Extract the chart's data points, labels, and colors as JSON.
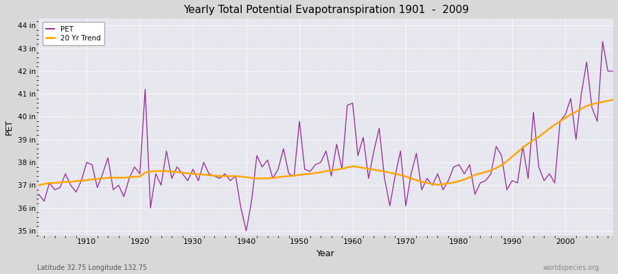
{
  "title": "Yearly Total Potential Evapotranspiration 1901  -  2009",
  "xlabel": "Year",
  "ylabel": "PET",
  "subtitle_left": "Latitude 32.75 Longitude 132.75",
  "subtitle_right": "worldspecies.org",
  "ylim": [
    34.8,
    44.3
  ],
  "yticks": [
    35,
    36,
    37,
    38,
    39,
    40,
    41,
    42,
    43,
    44
  ],
  "ytick_labels": [
    "35 in",
    "36 in",
    "37 in",
    "38 in",
    "39 in",
    "40 in",
    "41 in",
    "42 in",
    "43 in",
    "44 in"
  ],
  "pet_color": "#993399",
  "trend_color": "#FFA500",
  "fig_bg_color": "#E0E0E0",
  "plot_bg_color": "#E8E8F0",
  "years": [
    1901,
    1902,
    1903,
    1904,
    1905,
    1906,
    1907,
    1908,
    1909,
    1910,
    1911,
    1912,
    1913,
    1914,
    1915,
    1916,
    1917,
    1918,
    1919,
    1920,
    1921,
    1922,
    1923,
    1924,
    1925,
    1926,
    1927,
    1928,
    1929,
    1930,
    1931,
    1932,
    1933,
    1934,
    1935,
    1936,
    1937,
    1938,
    1939,
    1940,
    1941,
    1942,
    1943,
    1944,
    1945,
    1946,
    1947,
    1948,
    1949,
    1950,
    1951,
    1952,
    1953,
    1954,
    1955,
    1956,
    1957,
    1958,
    1959,
    1960,
    1961,
    1962,
    1963,
    1964,
    1965,
    1966,
    1967,
    1968,
    1969,
    1970,
    1971,
    1972,
    1973,
    1974,
    1975,
    1976,
    1977,
    1978,
    1979,
    1980,
    1981,
    1982,
    1983,
    1984,
    1985,
    1986,
    1987,
    1988,
    1989,
    1990,
    1991,
    1992,
    1993,
    1994,
    1995,
    1996,
    1997,
    1998,
    1999,
    2000,
    2001,
    2002,
    2003,
    2004,
    2005,
    2006,
    2007,
    2008,
    2009
  ],
  "pet_values": [
    36.6,
    36.3,
    37.1,
    36.8,
    36.9,
    37.5,
    37.0,
    36.7,
    37.2,
    38.0,
    37.9,
    36.9,
    37.5,
    38.2,
    36.8,
    37.0,
    36.5,
    37.3,
    37.8,
    37.5,
    41.2,
    36.0,
    37.5,
    37.0,
    38.5,
    37.3,
    37.8,
    37.5,
    37.2,
    37.7,
    37.2,
    38.0,
    37.5,
    37.4,
    37.3,
    37.5,
    37.2,
    37.4,
    36.0,
    35.0,
    36.3,
    38.3,
    37.8,
    38.1,
    37.3,
    37.7,
    38.6,
    37.5,
    37.4,
    39.8,
    37.7,
    37.6,
    37.9,
    38.0,
    38.5,
    37.4,
    38.8,
    37.7,
    40.5,
    40.6,
    38.3,
    39.1,
    37.3,
    38.5,
    39.5,
    37.3,
    36.1,
    37.4,
    38.5,
    36.1,
    37.5,
    38.4,
    36.8,
    37.3,
    37.0,
    37.5,
    36.8,
    37.2,
    37.8,
    37.9,
    37.5,
    37.9,
    36.6,
    37.1,
    37.2,
    37.5,
    38.7,
    38.3,
    36.8,
    37.2,
    37.1,
    38.7,
    37.3,
    40.2,
    37.8,
    37.2,
    37.5,
    37.1,
    39.8,
    40.1,
    40.8,
    39.0,
    41.0,
    42.4,
    40.4,
    39.8,
    43.3,
    42.0,
    42.0
  ],
  "trend_values": [
    37.0,
    37.05,
    37.1,
    37.1,
    37.12,
    37.15,
    37.15,
    37.18,
    37.2,
    37.22,
    37.25,
    37.28,
    37.3,
    37.32,
    37.33,
    37.33,
    37.33,
    37.35,
    37.37,
    37.38,
    37.55,
    37.6,
    37.62,
    37.62,
    37.62,
    37.6,
    37.58,
    37.55,
    37.52,
    37.5,
    37.48,
    37.46,
    37.44,
    37.42,
    37.4,
    37.4,
    37.4,
    37.4,
    37.38,
    37.35,
    37.32,
    37.3,
    37.3,
    37.3,
    37.32,
    37.35,
    37.38,
    37.4,
    37.42,
    37.45,
    37.48,
    37.5,
    37.53,
    37.57,
    37.62,
    37.65,
    37.68,
    37.72,
    37.78,
    37.83,
    37.8,
    37.76,
    37.72,
    37.68,
    37.64,
    37.6,
    37.55,
    37.5,
    37.45,
    37.38,
    37.3,
    37.22,
    37.15,
    37.1,
    37.05,
    37.02,
    37.05,
    37.08,
    37.12,
    37.18,
    37.25,
    37.35,
    37.45,
    37.52,
    37.58,
    37.65,
    37.75,
    37.88,
    38.05,
    38.25,
    38.45,
    38.65,
    38.82,
    38.98,
    39.12,
    39.3,
    39.48,
    39.65,
    39.8,
    39.95,
    40.1,
    40.22,
    40.35,
    40.47,
    40.55,
    40.6,
    40.65,
    40.7,
    40.75
  ]
}
